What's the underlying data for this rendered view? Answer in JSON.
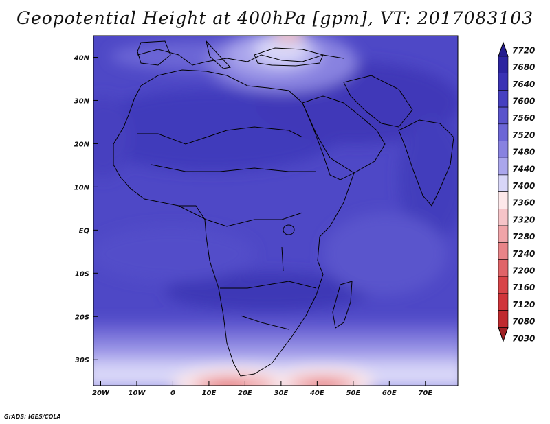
{
  "title": "Geopotential Height at 400hPa [gpm], VT: 2017083103",
  "credit": "GrADS: IGES/COLA",
  "axes": {
    "y_ticks": [
      "40N",
      "30N",
      "20N",
      "10N",
      "EQ",
      "10S",
      "20S",
      "30S"
    ],
    "x_ticks": [
      "20W",
      "10W",
      "0",
      "10E",
      "20E",
      "30E",
      "40E",
      "50E",
      "60E",
      "70E"
    ],
    "lat_values": [
      40,
      30,
      20,
      10,
      0,
      -10,
      -20,
      -30
    ],
    "lon_values": [
      -20,
      -10,
      0,
      10,
      20,
      30,
      40,
      50,
      60,
      70
    ],
    "lat_range": [
      -36,
      45
    ],
    "lon_range": [
      -22,
      79
    ]
  },
  "legend": {
    "labels": [
      "7720",
      "7680",
      "7640",
      "7600",
      "7560",
      "7520",
      "7480",
      "7440",
      "7400",
      "7360",
      "7320",
      "7280",
      "7240",
      "7200",
      "7160",
      "7120",
      "7080",
      "7030"
    ],
    "colors": [
      "#241c8e",
      "#2c24a0",
      "#3a32b4",
      "#4640c0",
      "#5a54cc",
      "#6c66d6",
      "#8882e0",
      "#aaa6ec",
      "#d8d6f8",
      "#fde8ea",
      "#f6c4c8",
      "#f0a4a8",
      "#e88488",
      "#e06468",
      "#d84448",
      "#d0343a",
      "#c02a2e",
      "#a02024"
    ]
  },
  "colors": {
    "base_field": "#4d46c4",
    "land_outline": "#000000"
  }
}
